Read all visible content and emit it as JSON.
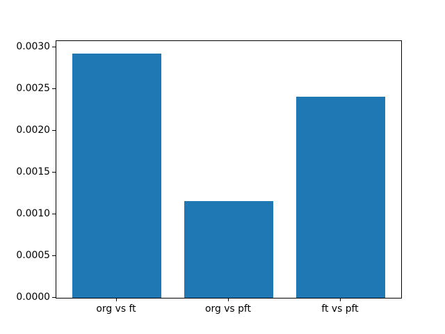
{
  "chart_data": {
    "type": "bar",
    "title": "",
    "xlabel": "",
    "ylabel": "",
    "categories": [
      "org vs ft",
      "org vs pft",
      "ft vs pft"
    ],
    "values": [
      0.00293,
      0.00116,
      0.00241
    ],
    "ylim": [
      0,
      0.003077
    ],
    "yticks": [
      {
        "value": 0.0,
        "label": "0.0000"
      },
      {
        "value": 0.0005,
        "label": "0.0005"
      },
      {
        "value": 0.001,
        "label": "0.0010"
      },
      {
        "value": 0.0015,
        "label": "0.0015"
      },
      {
        "value": 0.002,
        "label": "0.0020"
      },
      {
        "value": 0.0025,
        "label": "0.0025"
      },
      {
        "value": 0.003,
        "label": "0.0030"
      }
    ],
    "bar_color": "#1f77b4",
    "background_color": "#ffffff",
    "spine_color": "#000000",
    "text_color": "#000000",
    "grid": false,
    "legend": null,
    "bar_width_fraction": 0.8
  }
}
